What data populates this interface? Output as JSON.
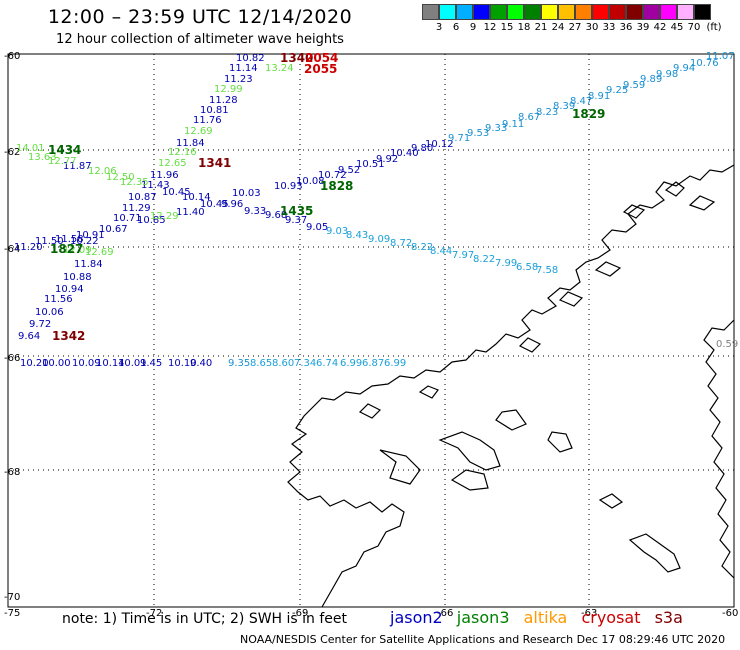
{
  "header": {
    "title": "12:00 – 23:59 UTC 12/14/2020",
    "subtitle": "12 hour collection of altimeter wave heights"
  },
  "colorbar": {
    "unit": "(ft)",
    "labels": [
      "3",
      "6",
      "9",
      "12",
      "15",
      "18",
      "21",
      "24",
      "27",
      "30",
      "33",
      "36",
      "39",
      "42",
      "45",
      "70"
    ],
    "colors": [
      "#808080",
      "#00ffff",
      "#00b0ff",
      "#0000ff",
      "#00a000",
      "#00ff00",
      "#008000",
      "#ffff00",
      "#ffc000",
      "#ff8000",
      "#ff0000",
      "#c00000",
      "#800000",
      "#a000a0",
      "#ff00ff",
      "#ffb0ff",
      "#000000"
    ]
  },
  "axes": {
    "lat_labels": [
      "-60",
      "-62",
      "-64",
      "-66",
      "-68",
      "-70"
    ],
    "lon_labels": [
      "-75",
      "-72",
      "-69",
      "-66",
      "-63",
      "-60"
    ]
  },
  "satellites": {
    "jason2": {
      "label": "jason2",
      "color": "#0000c0"
    },
    "jason3": {
      "label": "jason3",
      "color": "#008000"
    },
    "altika": {
      "label": "altika",
      "color": "#ff9900"
    },
    "cryosat": {
      "label": "cryosat",
      "color": "#cc0000"
    },
    "s3a": {
      "label": "s3a",
      "color": "#800000"
    }
  },
  "time_labels": [
    {
      "text": "1434",
      "color": "#006400"
    },
    {
      "text": "1341",
      "color": "#800000"
    },
    {
      "text": "1340",
      "color": "#800000"
    },
    {
      "text": "2054",
      "color": "#cc0000"
    },
    {
      "text": "2055",
      "color": "#cc0000"
    },
    {
      "text": "1828",
      "color": "#006400"
    },
    {
      "text": "1829",
      "color": "#006400"
    },
    {
      "text": "1435",
      "color": "#006400"
    },
    {
      "text": "1827",
      "color": "#006400"
    },
    {
      "text": "1342",
      "color": "#800000"
    }
  ],
  "track_values": {
    "navy_upper": [
      "10.82",
      "11.14",
      "11.23",
      "11.28",
      "10.81",
      "11.76",
      "11.84",
      "11.96",
      "11.43",
      "10.45",
      "10.87",
      "10.14",
      "11.29",
      "11.40",
      "10.71",
      "10.85",
      "10.67",
      "11.50",
      "10.91",
      "11.58",
      "11.20",
      "10.22"
    ],
    "navy_lower": [
      "11.84",
      "10.88",
      "10.94",
      "11.56",
      "10.06",
      "9.72",
      "9.64"
    ],
    "lightgreen": [
      "13.24",
      "12.99",
      "12.69",
      "12.16",
      "12.65",
      "12.50",
      "12.06",
      "12.35",
      "13.63",
      "14.01",
      "12.77",
      "12.69",
      "12.29",
      "12.09"
    ],
    "navy_upper_left": [
      "11.87"
    ],
    "navy_cross": [
      "9.33",
      "9.68",
      "9.37",
      "9.05",
      "10.45",
      "9.96",
      "10.03",
      "10.93",
      "10.08",
      "10.72",
      "9.52",
      "10.51",
      "9.92",
      "10.40",
      "9.80",
      "10.12"
    ],
    "cyan_line": [
      "9.71",
      "9.53",
      "9.33",
      "9.11",
      "8.67",
      "8.23",
      "8.39",
      "8.47",
      "8.91",
      "9.25",
      "9.59",
      "9.89",
      "9.98",
      "9.94",
      "10.76",
      "11.07"
    ],
    "cyan_low": [
      "9.03",
      "8.43",
      "9.09",
      "8.72",
      "8.22",
      "8.44",
      "7.97",
      "8.22",
      "7.99",
      "6.58",
      "7.58"
    ],
    "bottom_row": [
      "10.20",
      "10.00",
      "10.09",
      "10.14",
      "10.01",
      "9.45",
      "10.10",
      "9.40",
      "9.35",
      "8.65",
      "8.60",
      "7.34",
      "6.74",
      "6.99",
      "6.87",
      "6.99"
    ],
    "gray_edge": [
      "0.59"
    ]
  },
  "footer": {
    "note": "note: 1) Time is in UTC; 2) SWH is in feet",
    "credit": "NOAA/NESDIS Center for Satellite Applications and Research   Dec 17 08:29:46 UTC 2020"
  }
}
